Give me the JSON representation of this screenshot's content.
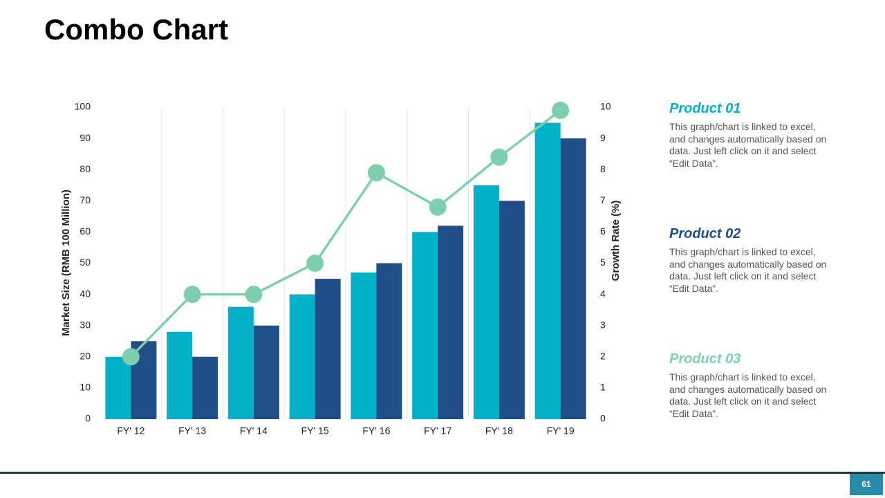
{
  "chart_data": {
    "type": "combo",
    "title": "Combo Chart",
    "categories": [
      "FY' 12",
      "FY' 13",
      "FY' 14",
      "FY' 15",
      "FY' 16",
      "FY' 17",
      "FY' 18",
      "FY' 19"
    ],
    "series": [
      {
        "name": "Product 01",
        "type": "bar",
        "color": "#00b0c8",
        "values": [
          20,
          28,
          36,
          40,
          47,
          60,
          75,
          95
        ]
      },
      {
        "name": "Product 02",
        "type": "bar",
        "color": "#1f4e89",
        "values": [
          25,
          20,
          30,
          45,
          50,
          62,
          70,
          90
        ]
      },
      {
        "name": "Product 03",
        "type": "line",
        "axis": "y2",
        "color": "#7ecfb0",
        "values": [
          2,
          4,
          4,
          5,
          7.9,
          6.8,
          8.4,
          9.9
        ]
      }
    ],
    "y_label": "Market Size (RMB 100 Million)",
    "y2_label": "Growth Rate (%)",
    "ylim": [
      0,
      100
    ],
    "yticks": [
      0,
      10,
      20,
      30,
      40,
      50,
      60,
      70,
      80,
      90,
      100
    ],
    "y2lim": [
      0,
      10
    ],
    "y2ticks": [
      0,
      1,
      2,
      3,
      4,
      5,
      6,
      7,
      8,
      9,
      10
    ],
    "grid": true
  },
  "descriptions": [
    "This graph/chart is linked to excel, and changes automatically based on data. Just left click on it and select “Edit Data”.",
    "This graph/chart is linked to excel, and changes automatically based on data. Just left click on it and select “Edit Data”.",
    "This graph/chart is linked to excel, and changes automatically based on data. Just left click on it and select “Edit Data”."
  ],
  "page_number": "61"
}
